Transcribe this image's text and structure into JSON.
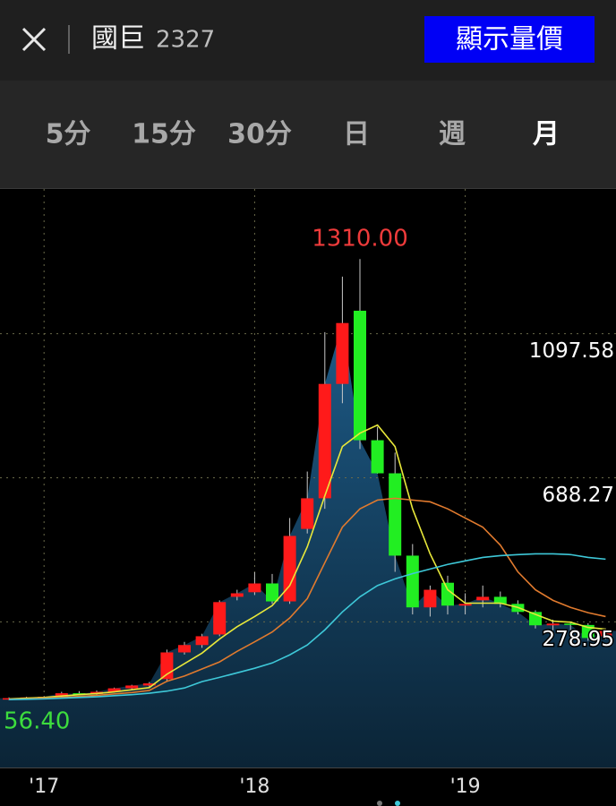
{
  "header": {
    "stock_name": "國巨",
    "stock_code": "2327",
    "button": "顯示量價"
  },
  "tabs": [
    "5分",
    "15分",
    "30分",
    "日",
    "週",
    "月"
  ],
  "selected_tab": 5,
  "chart_data": {
    "type": "candlestick",
    "categories": [
      null,
      null,
      "'17",
      null,
      null,
      null,
      null,
      null,
      null,
      null,
      null,
      null,
      null,
      null,
      "'18",
      null,
      null,
      null,
      null,
      null,
      null,
      null,
      null,
      null,
      null,
      null,
      "'19",
      null,
      null,
      null,
      null,
      null,
      null,
      null,
      null
    ],
    "open": [
      58,
      62,
      64,
      66,
      76,
      74,
      80,
      90,
      98,
      116,
      192,
      213,
      243,
      350,
      363,
      388,
      337,
      543,
      630,
      955,
      1163,
      795,
      701,
      467,
      320,
      390,
      325,
      340,
      350,
      330,
      307,
      269,
      274,
      270,
      238
    ],
    "high": [
      64,
      66,
      68,
      80,
      82,
      84,
      92,
      100,
      108,
      200,
      222,
      245,
      340,
      370,
      420,
      415,
      574,
      706,
      1102,
      1260,
      1310,
      833,
      760,
      500,
      382,
      410,
      360,
      382,
      365,
      340,
      312,
      285,
      280,
      275,
      260
    ],
    "low": [
      56.4,
      60,
      62,
      64,
      72,
      72,
      78,
      86,
      92,
      108,
      186,
      205,
      238,
      340,
      355,
      330,
      330,
      530,
      600,
      900,
      770,
      700,
      421,
      300,
      294,
      300,
      300,
      320,
      320,
      300,
      260,
      255,
      255,
      225,
      230
    ],
    "close": [
      62,
      64,
      66,
      76,
      74,
      80,
      90,
      98,
      104,
      192,
      213,
      238,
      335,
      360,
      388,
      337,
      523,
      630,
      955,
      1128,
      795,
      701,
      467,
      320,
      370,
      325,
      330,
      350,
      330,
      307,
      269,
      274,
      270,
      233,
      253
    ],
    "up_color": "#ff1a1a",
    "down_color": "#22ee22",
    "moving_averages": [
      {
        "color": "#e8e83a",
        "values": [
          60,
          62,
          64,
          68,
          72,
          75,
          80,
          86,
          92,
          130,
          160,
          190,
          230,
          265,
          294,
          325,
          382,
          492,
          637,
          777,
          815,
          838,
          777,
          600,
          472,
          370,
          332,
          332,
          332,
          320,
          300,
          281,
          278,
          263,
          258
        ]
      },
      {
        "color": "#e07a2e",
        "values": [
          59,
          60,
          62,
          64,
          67,
          70,
          74,
          78,
          84,
          110,
          125,
          145,
          165,
          195,
          222,
          250,
          290,
          345,
          447,
          548,
          600,
          625,
          630,
          625,
          620,
          600,
          574,
          548,
          497,
          421,
          370,
          340,
          320,
          305,
          294
        ]
      },
      {
        "color": "#3ec8d8",
        "values": [
          58,
          59,
          60,
          62,
          64,
          66,
          69,
          72,
          76,
          82,
          91,
          109,
          121,
          134,
          147,
          162,
          185,
          213,
          256,
          307,
          350,
          382,
          401,
          416,
          429,
          442,
          452,
          462,
          467,
          470,
          472,
          472,
          470,
          462,
          457
        ]
      }
    ],
    "ylim": [
      -135,
      1509
    ],
    "yticks": [
      278.95,
      688.27,
      1097.58
    ],
    "grid": true,
    "annotations": [
      {
        "value": 1310,
        "label": "1310.00",
        "color": "#ef3b3b"
      },
      {
        "value": 56.4,
        "label": "56.40",
        "color": "#3ddc3d"
      }
    ]
  }
}
